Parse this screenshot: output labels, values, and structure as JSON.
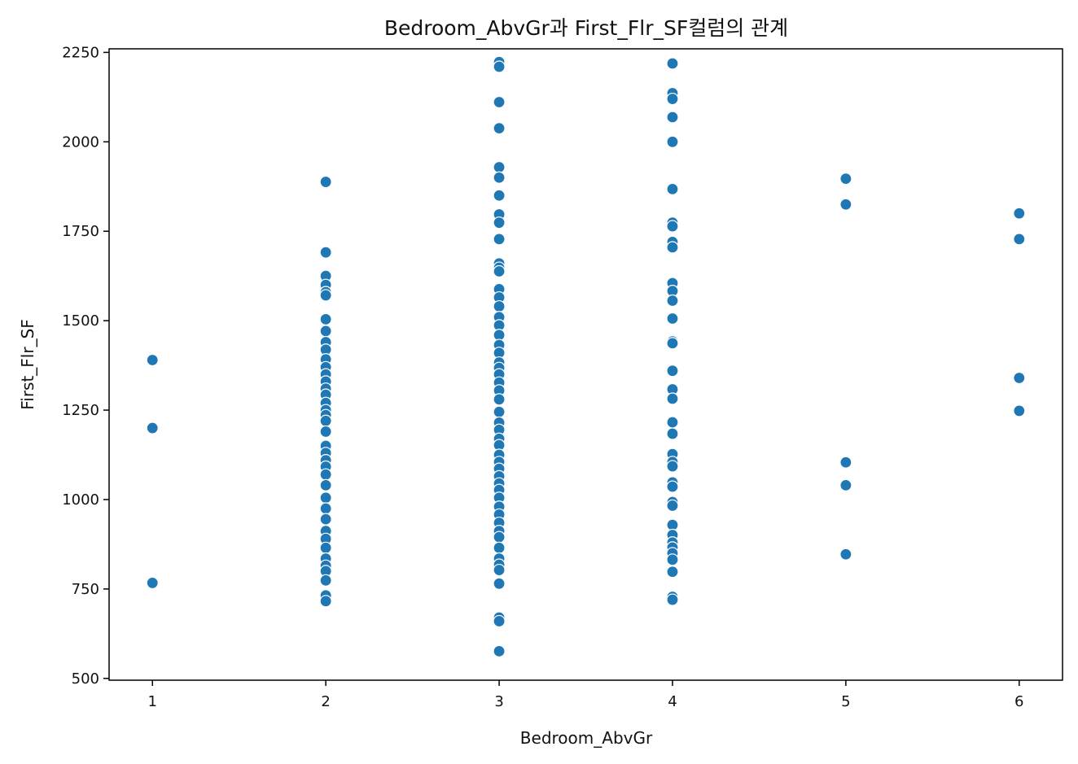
{
  "chart_data": {
    "type": "scatter",
    "title": "Bedroom_AbvGr과 First_Flr_SF컬럼의 관계",
    "xlabel": "Bedroom_AbvGr",
    "ylabel": "First_Flr_SF",
    "xlim": [
      0.75,
      6.25
    ],
    "ylim": [
      495,
      2260
    ],
    "xticks": [
      1,
      2,
      3,
      4,
      5,
      6
    ],
    "yticks": [
      500,
      750,
      1000,
      1250,
      1500,
      1750,
      2000,
      2250
    ],
    "grid": false,
    "marker_color": "#1f77b4",
    "marker_edge_color": "#ffffff",
    "points": [
      {
        "x": 1,
        "y": 1390
      },
      {
        "x": 1,
        "y": 1200
      },
      {
        "x": 1,
        "y": 767
      },
      {
        "x": 2,
        "y": 1888
      },
      {
        "x": 2,
        "y": 1691
      },
      {
        "x": 2,
        "y": 1625
      },
      {
        "x": 2,
        "y": 1600
      },
      {
        "x": 2,
        "y": 1580
      },
      {
        "x": 2,
        "y": 1571
      },
      {
        "x": 2,
        "y": 1504
      },
      {
        "x": 2,
        "y": 1471
      },
      {
        "x": 2,
        "y": 1440
      },
      {
        "x": 2,
        "y": 1419
      },
      {
        "x": 2,
        "y": 1392
      },
      {
        "x": 2,
        "y": 1370
      },
      {
        "x": 2,
        "y": 1350
      },
      {
        "x": 2,
        "y": 1330
      },
      {
        "x": 2,
        "y": 1310
      },
      {
        "x": 2,
        "y": 1293
      },
      {
        "x": 2,
        "y": 1270
      },
      {
        "x": 2,
        "y": 1250
      },
      {
        "x": 2,
        "y": 1236
      },
      {
        "x": 2,
        "y": 1220
      },
      {
        "x": 2,
        "y": 1190
      },
      {
        "x": 2,
        "y": 1150
      },
      {
        "x": 2,
        "y": 1130
      },
      {
        "x": 2,
        "y": 1110
      },
      {
        "x": 2,
        "y": 1092
      },
      {
        "x": 2,
        "y": 1070
      },
      {
        "x": 2,
        "y": 1040
      },
      {
        "x": 2,
        "y": 1005
      },
      {
        "x": 2,
        "y": 975
      },
      {
        "x": 2,
        "y": 945
      },
      {
        "x": 2,
        "y": 912
      },
      {
        "x": 2,
        "y": 890
      },
      {
        "x": 2,
        "y": 865
      },
      {
        "x": 2,
        "y": 835
      },
      {
        "x": 2,
        "y": 815
      },
      {
        "x": 2,
        "y": 800
      },
      {
        "x": 2,
        "y": 774
      },
      {
        "x": 2,
        "y": 732
      },
      {
        "x": 2,
        "y": 716
      },
      {
        "x": 3,
        "y": 2223
      },
      {
        "x": 3,
        "y": 2210
      },
      {
        "x": 3,
        "y": 2111
      },
      {
        "x": 3,
        "y": 2038
      },
      {
        "x": 3,
        "y": 1929
      },
      {
        "x": 3,
        "y": 1900
      },
      {
        "x": 3,
        "y": 1850
      },
      {
        "x": 3,
        "y": 1797
      },
      {
        "x": 3,
        "y": 1774
      },
      {
        "x": 3,
        "y": 1728
      },
      {
        "x": 3,
        "y": 1660
      },
      {
        "x": 3,
        "y": 1648
      },
      {
        "x": 3,
        "y": 1638
      },
      {
        "x": 3,
        "y": 1588
      },
      {
        "x": 3,
        "y": 1565
      },
      {
        "x": 3,
        "y": 1540
      },
      {
        "x": 3,
        "y": 1510
      },
      {
        "x": 3,
        "y": 1487
      },
      {
        "x": 3,
        "y": 1460
      },
      {
        "x": 3,
        "y": 1432
      },
      {
        "x": 3,
        "y": 1410
      },
      {
        "x": 3,
        "y": 1383
      },
      {
        "x": 3,
        "y": 1368
      },
      {
        "x": 3,
        "y": 1350
      },
      {
        "x": 3,
        "y": 1327
      },
      {
        "x": 3,
        "y": 1305
      },
      {
        "x": 3,
        "y": 1280
      },
      {
        "x": 3,
        "y": 1245
      },
      {
        "x": 3,
        "y": 1215
      },
      {
        "x": 3,
        "y": 1195
      },
      {
        "x": 3,
        "y": 1170
      },
      {
        "x": 3,
        "y": 1152
      },
      {
        "x": 3,
        "y": 1125
      },
      {
        "x": 3,
        "y": 1105
      },
      {
        "x": 3,
        "y": 1086
      },
      {
        "x": 3,
        "y": 1065
      },
      {
        "x": 3,
        "y": 1045
      },
      {
        "x": 3,
        "y": 1027
      },
      {
        "x": 3,
        "y": 1005
      },
      {
        "x": 3,
        "y": 980
      },
      {
        "x": 3,
        "y": 958
      },
      {
        "x": 3,
        "y": 935
      },
      {
        "x": 3,
        "y": 912
      },
      {
        "x": 3,
        "y": 895
      },
      {
        "x": 3,
        "y": 865
      },
      {
        "x": 3,
        "y": 835
      },
      {
        "x": 3,
        "y": 818
      },
      {
        "x": 3,
        "y": 803
      },
      {
        "x": 3,
        "y": 765
      },
      {
        "x": 3,
        "y": 670
      },
      {
        "x": 3,
        "y": 660
      },
      {
        "x": 3,
        "y": 576
      },
      {
        "x": 4,
        "y": 2219
      },
      {
        "x": 4,
        "y": 2136
      },
      {
        "x": 4,
        "y": 2120
      },
      {
        "x": 4,
        "y": 2069
      },
      {
        "x": 4,
        "y": 2000
      },
      {
        "x": 4,
        "y": 1868
      },
      {
        "x": 4,
        "y": 1774
      },
      {
        "x": 4,
        "y": 1764
      },
      {
        "x": 4,
        "y": 1720
      },
      {
        "x": 4,
        "y": 1705
      },
      {
        "x": 4,
        "y": 1605
      },
      {
        "x": 4,
        "y": 1583
      },
      {
        "x": 4,
        "y": 1556
      },
      {
        "x": 4,
        "y": 1506
      },
      {
        "x": 4,
        "y": 1442
      },
      {
        "x": 4,
        "y": 1437
      },
      {
        "x": 4,
        "y": 1360
      },
      {
        "x": 4,
        "y": 1308
      },
      {
        "x": 4,
        "y": 1282
      },
      {
        "x": 4,
        "y": 1216
      },
      {
        "x": 4,
        "y": 1184
      },
      {
        "x": 4,
        "y": 1127
      },
      {
        "x": 4,
        "y": 1105
      },
      {
        "x": 4,
        "y": 1093
      },
      {
        "x": 4,
        "y": 1048
      },
      {
        "x": 4,
        "y": 1036
      },
      {
        "x": 4,
        "y": 993
      },
      {
        "x": 4,
        "y": 983
      },
      {
        "x": 4,
        "y": 929
      },
      {
        "x": 4,
        "y": 901
      },
      {
        "x": 4,
        "y": 880
      },
      {
        "x": 4,
        "y": 866
      },
      {
        "x": 4,
        "y": 850
      },
      {
        "x": 4,
        "y": 832
      },
      {
        "x": 4,
        "y": 798
      },
      {
        "x": 4,
        "y": 728
      },
      {
        "x": 4,
        "y": 720
      },
      {
        "x": 5,
        "y": 1897
      },
      {
        "x": 5,
        "y": 1825
      },
      {
        "x": 5,
        "y": 1104
      },
      {
        "x": 5,
        "y": 1040
      },
      {
        "x": 5,
        "y": 847
      },
      {
        "x": 6,
        "y": 1800
      },
      {
        "x": 6,
        "y": 1728
      },
      {
        "x": 6,
        "y": 1340
      },
      {
        "x": 6,
        "y": 1248
      }
    ]
  }
}
